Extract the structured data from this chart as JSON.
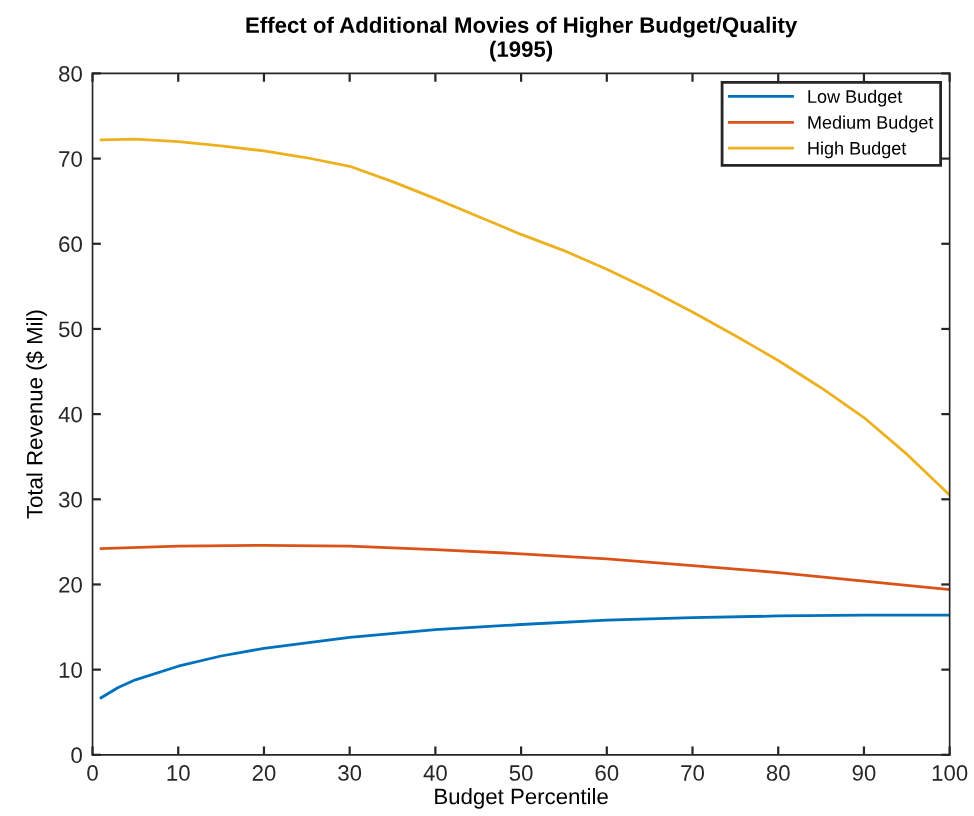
{
  "chart_data": {
    "type": "line",
    "title": "Effect of Additional Movies of Higher Budget/Quality\n(1995)",
    "xlabel": "Budget Percentile",
    "ylabel": "Total Revenue ($ Mil)",
    "series": [
      {
        "name": "Low Budget",
        "color": "#0072bd",
        "x": [
          1,
          3,
          5,
          10,
          15,
          20,
          30,
          40,
          50,
          60,
          70,
          80,
          90,
          100
        ],
        "values": [
          6.7,
          7.9,
          8.8,
          10.4,
          11.6,
          12.5,
          13.8,
          14.7,
          15.3,
          15.8,
          16.1,
          16.3,
          16.4,
          16.4
        ]
      },
      {
        "name": "Medium Budget",
        "color": "#d95319",
        "x": [
          1,
          10,
          20,
          30,
          40,
          50,
          60,
          70,
          80,
          90,
          100
        ],
        "values": [
          24.2,
          24.5,
          24.6,
          24.5,
          24.1,
          23.6,
          23.0,
          22.2,
          21.4,
          20.4,
          19.4
        ]
      },
      {
        "name": "High Budget",
        "color": "#edb120",
        "x": [
          1,
          5,
          10,
          15,
          20,
          25,
          30,
          35,
          40,
          45,
          50,
          55,
          60,
          65,
          70,
          75,
          80,
          85,
          90,
          95,
          100
        ],
        "values": [
          72.2,
          72.3,
          72.0,
          71.5,
          70.9,
          70.1,
          69.1,
          67.3,
          65.3,
          63.2,
          61.1,
          59.2,
          57.0,
          54.6,
          52.0,
          49.2,
          46.3,
          43.1,
          39.6,
          35.3,
          30.5
        ]
      }
    ],
    "xlim": [
      0,
      100
    ],
    "xticks": [
      0,
      10,
      20,
      30,
      40,
      50,
      60,
      70,
      80,
      90,
      100
    ],
    "ylim": [
      0,
      80
    ],
    "yticks": [
      0,
      10,
      20,
      30,
      40,
      50,
      60,
      70,
      80
    ],
    "grid": false,
    "legend": "top right",
    "line_style": "solid",
    "marker": "none"
  }
}
